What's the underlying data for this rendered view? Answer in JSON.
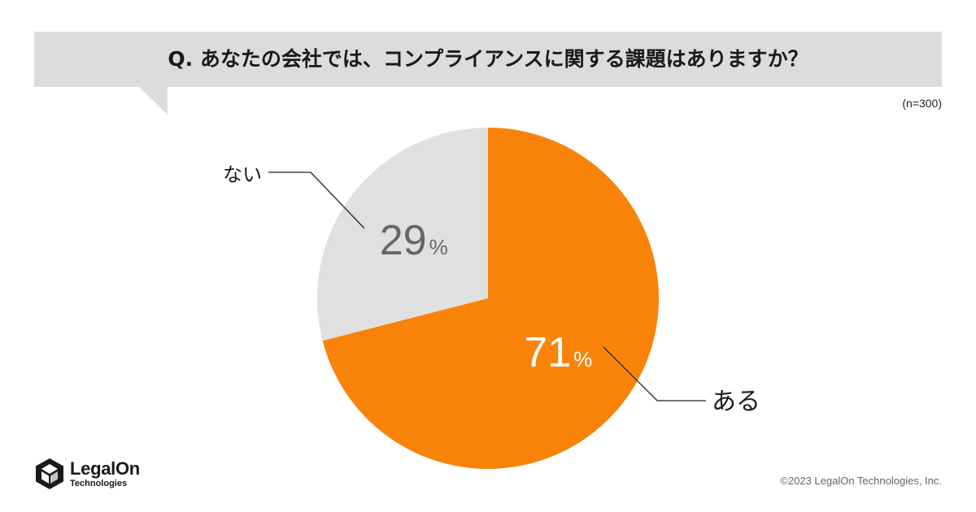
{
  "question": "Q. あなたの会社では、コンプライアンスに関する課題はありますか？",
  "sample_size": "(n=300)",
  "chart_data": {
    "type": "pie",
    "title": "Q. あなたの会社では、コンプライアンスに関する課題はありますか？",
    "categories": [
      "ある",
      "ない"
    ],
    "values": [
      71,
      29
    ],
    "unit": "%",
    "colors": [
      "#f98309",
      "#e0e0e0"
    ],
    "value_label_colors": [
      "#ffffff",
      "#666666"
    ],
    "legend": "none (callout labels)"
  },
  "footer": {
    "logo_name": "LegalOn",
    "logo_sub": "Technologies",
    "copyright": "©2023 LegalOn Technologies, Inc."
  }
}
